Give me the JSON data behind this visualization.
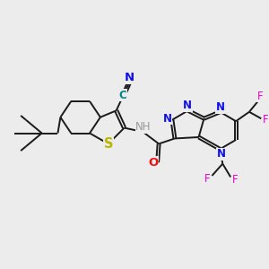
{
  "background_color": "#ececec",
  "bond_color": "#1a1a1a",
  "bond_width": 1.4,
  "atom_colors": {
    "N": "#1010ee",
    "S": "#b8b800",
    "O": "#ee1010",
    "F": "#ee00cc",
    "C_nitrile": "#008888",
    "N_nitrile": "#1010ee",
    "NH": "#999999",
    "default": "#1a1a1a"
  },
  "font_size": 8.5,
  "figsize": [
    3.0,
    3.0
  ],
  "dpi": 100
}
